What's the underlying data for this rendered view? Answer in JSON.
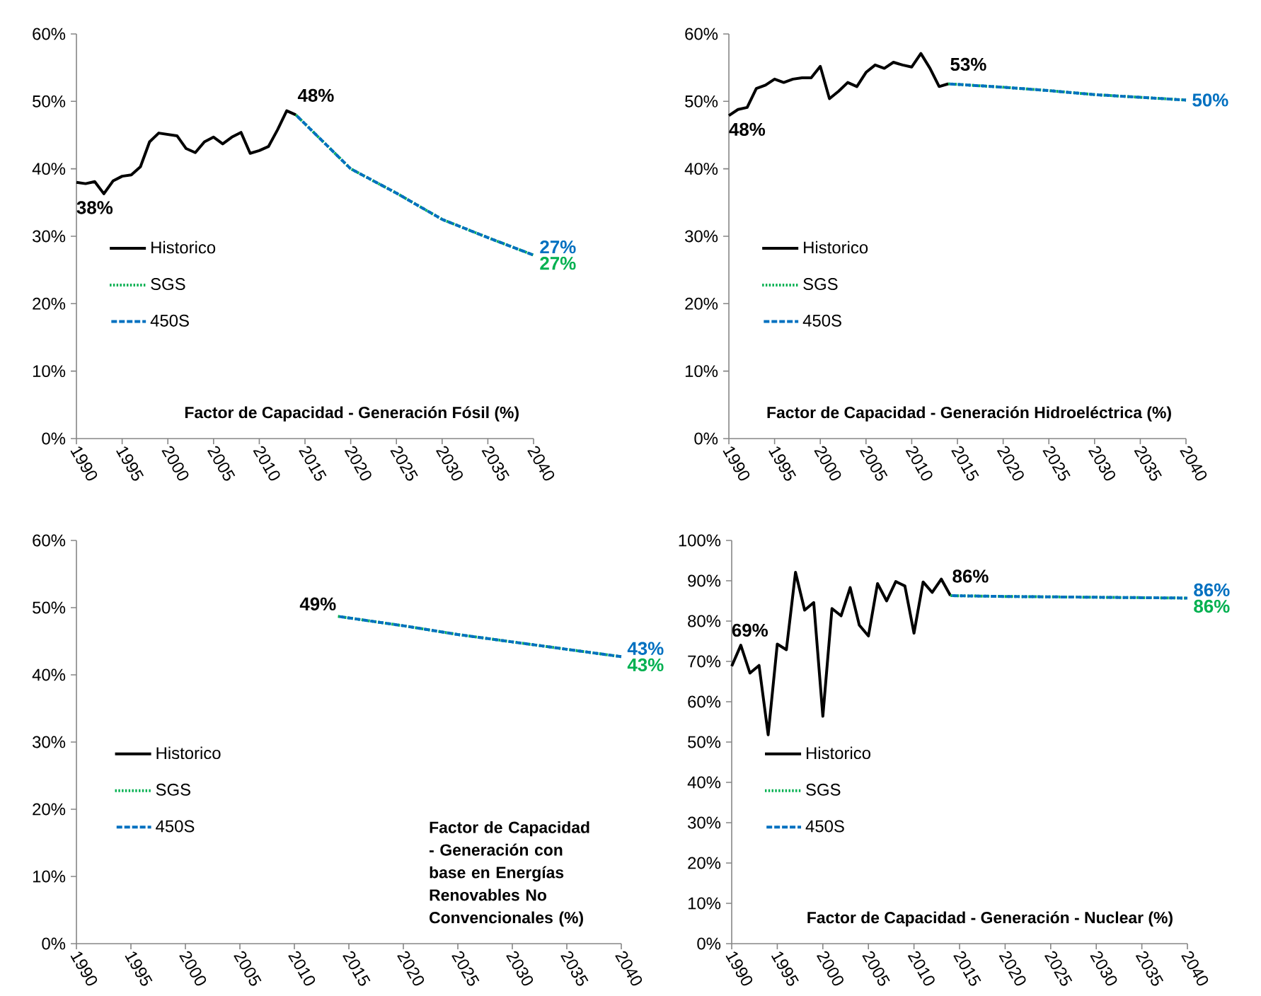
{
  "chart_data": [
    {
      "type": "line",
      "title": "Factor de Capacidad - Generación Fósil (%)",
      "xlim": [
        1990,
        2040
      ],
      "xticks": [
        1990,
        1995,
        2000,
        2005,
        2010,
        2015,
        2020,
        2025,
        2030,
        2035,
        2040
      ],
      "ylim": [
        0,
        60
      ],
      "yticks": [
        {
          "value": 0,
          "label": "0%"
        },
        {
          "value": 10,
          "label": "10%"
        },
        {
          "value": 20,
          "label": "20%"
        },
        {
          "value": 30,
          "label": "30%"
        },
        {
          "value": 40,
          "label": "40%"
        },
        {
          "value": 50,
          "label": "50%"
        },
        {
          "value": 60,
          "label": "60%"
        }
      ],
      "legend": "center left",
      "series": [
        {
          "name": "Historico",
          "color": "#000000",
          "line_style": "solid",
          "x": [
            1990,
            1991,
            1992,
            1993,
            1994,
            1995,
            1996,
            1997,
            1998,
            1999,
            2000,
            2001,
            2002,
            2003,
            2004,
            2005,
            2006,
            2007,
            2008,
            2009,
            2010,
            2011,
            2012,
            2013,
            2014
          ],
          "values": [
            38.0,
            37.8,
            38.1,
            36.3,
            38.2,
            38.9,
            39.1,
            40.3,
            44.0,
            45.3,
            45.1,
            44.9,
            43.0,
            42.4,
            44.0,
            44.7,
            43.7,
            44.7,
            45.4,
            42.3,
            42.7,
            43.3,
            45.8,
            48.6,
            48.0
          ],
          "value_labels": [
            "38%",
            null,
            null,
            null,
            null,
            null,
            null,
            null,
            null,
            null,
            null,
            null,
            null,
            null,
            null,
            null,
            null,
            null,
            null,
            null,
            null,
            null,
            null,
            null,
            "48%"
          ]
        },
        {
          "name": "SGS",
          "color": "#00b050",
          "line_style": "dotted",
          "x": [
            2014,
            2017,
            2020,
            2025,
            2030,
            2035,
            2040
          ],
          "values": [
            48.0,
            44.0,
            40.0,
            36.4,
            32.5,
            29.8,
            27.2
          ],
          "value_labels": [
            null,
            null,
            null,
            null,
            null,
            null,
            "27%"
          ]
        },
        {
          "name": "450S",
          "color": "#0070c0",
          "line_style": "dashed",
          "x": [
            2014,
            2017,
            2020,
            2025,
            2030,
            2035,
            2040
          ],
          "values": [
            48.0,
            44.0,
            40.0,
            36.4,
            32.5,
            29.8,
            27.2
          ],
          "value_labels": [
            null,
            null,
            null,
            null,
            null,
            null,
            "27%"
          ]
        }
      ]
    },
    {
      "type": "line",
      "title": "Factor de Capacidad - Generación Hidroeléctrica (%)",
      "xlim": [
        1990,
        2040
      ],
      "xticks": [
        1990,
        1995,
        2000,
        2005,
        2010,
        2015,
        2020,
        2025,
        2030,
        2035,
        2040
      ],
      "ylim": [
        0,
        60
      ],
      "yticks": [
        {
          "value": 0,
          "label": "0%"
        },
        {
          "value": 10,
          "label": "10%"
        },
        {
          "value": 20,
          "label": "20%"
        },
        {
          "value": 30,
          "label": "30%"
        },
        {
          "value": 40,
          "label": "40%"
        },
        {
          "value": 50,
          "label": "50%"
        },
        {
          "value": 60,
          "label": "60%"
        }
      ],
      "legend": "center left",
      "series": [
        {
          "name": "Historico",
          "color": "#000000",
          "line_style": "solid",
          "x": [
            1990,
            1991,
            1992,
            1993,
            1994,
            1995,
            1996,
            1997,
            1998,
            1999,
            2000,
            2001,
            2002,
            2003,
            2004,
            2005,
            2006,
            2007,
            2008,
            2009,
            2010,
            2011,
            2012,
            2013,
            2014
          ],
          "values": [
            47.9,
            48.8,
            49.1,
            51.9,
            52.4,
            53.3,
            52.8,
            53.3,
            53.5,
            53.5,
            55.2,
            50.4,
            51.5,
            52.8,
            52.2,
            54.3,
            55.4,
            54.9,
            55.8,
            55.4,
            55.1,
            57.1,
            54.9,
            52.2,
            52.6
          ],
          "value_labels": [
            "48%",
            null,
            null,
            null,
            null,
            null,
            null,
            null,
            null,
            null,
            null,
            null,
            null,
            null,
            null,
            null,
            null,
            null,
            null,
            null,
            null,
            null,
            null,
            null,
            "53%"
          ]
        },
        {
          "name": "SGS",
          "color": "#00b050",
          "line_style": "dotted",
          "x": [
            2014,
            2020,
            2025,
            2030,
            2035,
            2040
          ],
          "values": [
            52.6,
            52.1,
            51.6,
            51.0,
            50.6,
            50.2
          ],
          "value_labels": [
            null,
            null,
            null,
            null,
            null,
            null
          ]
        },
        {
          "name": "450S",
          "color": "#0070c0",
          "line_style": "dashed",
          "x": [
            2014,
            2020,
            2025,
            2030,
            2035,
            2040
          ],
          "values": [
            52.6,
            52.1,
            51.6,
            51.0,
            50.6,
            50.2
          ],
          "value_labels": [
            null,
            null,
            null,
            null,
            null,
            "50%"
          ]
        }
      ]
    },
    {
      "type": "line",
      "title": "Factor de Capacidad - Generación con base en Energías Renovables No Convencionales (%)",
      "annotations": [
        {
          "text": "49%",
          "x": 2014,
          "y": 48.7
        }
      ],
      "xlim": [
        1990,
        2040
      ],
      "xticks": [
        1990,
        1995,
        2000,
        2005,
        2010,
        2015,
        2020,
        2025,
        2030,
        2035,
        2040
      ],
      "ylim": [
        0,
        60
      ],
      "yticks": [
        {
          "value": 0,
          "label": "0%"
        },
        {
          "value": 10,
          "label": "10%"
        },
        {
          "value": 20,
          "label": "20%"
        },
        {
          "value": 30,
          "label": "30%"
        },
        {
          "value": 40,
          "label": "40%"
        },
        {
          "value": 50,
          "label": "50%"
        },
        {
          "value": 60,
          "label": "60%"
        }
      ],
      "legend": "center left",
      "series": [
        {
          "name": "Historico",
          "color": "#000000",
          "line_style": "solid"
        },
        {
          "name": "SGS",
          "color": "#00b050",
          "line_style": "dotted",
          "x": [
            2014,
            2020,
            2025,
            2030,
            2035,
            2040
          ],
          "values": [
            48.7,
            47.3,
            46.0,
            44.9,
            43.8,
            42.7
          ],
          "value_labels": [
            null,
            null,
            null,
            null,
            null,
            "43%"
          ]
        },
        {
          "name": "450S",
          "color": "#0070c0",
          "line_style": "dashed",
          "x": [
            2014,
            2020,
            2025,
            2030,
            2035,
            2040
          ],
          "values": [
            48.7,
            47.3,
            46.0,
            44.9,
            43.8,
            42.7
          ],
          "value_labels": [
            null,
            null,
            null,
            null,
            null,
            "43%"
          ]
        }
      ]
    },
    {
      "type": "line",
      "title": "Factor de Capacidad - Generación - Nuclear (%)",
      "xlim": [
        1990,
        2040
      ],
      "xticks": [
        1990,
        1995,
        2000,
        2005,
        2010,
        2015,
        2020,
        2025,
        2030,
        2035,
        2040
      ],
      "ylim": [
        0,
        100
      ],
      "yticks": [
        {
          "value": 0,
          "label": "0%"
        },
        {
          "value": 10,
          "label": "10%"
        },
        {
          "value": 20,
          "label": "20%"
        },
        {
          "value": 30,
          "label": "30%"
        },
        {
          "value": 40,
          "label": "40%"
        },
        {
          "value": 50,
          "label": "50%"
        },
        {
          "value": 60,
          "label": "60%"
        },
        {
          "value": 70,
          "label": "70%"
        },
        {
          "value": 80,
          "label": "80%"
        },
        {
          "value": 90,
          "label": "90%"
        },
        {
          "value": 100,
          "label": "100%"
        }
      ],
      "legend": "center left",
      "series": [
        {
          "name": "Historico",
          "color": "#000000",
          "line_style": "solid",
          "x": [
            1990,
            1991,
            1992,
            1993,
            1994,
            1995,
            1996,
            1997,
            1998,
            1999,
            2000,
            2001,
            2002,
            2003,
            2004,
            2005,
            2006,
            2007,
            2008,
            2009,
            2010,
            2011,
            2012,
            2013,
            2014
          ],
          "values": [
            68.8,
            74.0,
            67.1,
            69.0,
            51.8,
            74.3,
            72.9,
            92.1,
            82.7,
            84.6,
            56.4,
            83.1,
            81.3,
            88.3,
            79.0,
            76.3,
            89.3,
            85.0,
            89.8,
            88.7,
            77.0,
            89.7,
            87.1,
            90.4,
            86.3
          ],
          "value_labels": [
            "69%",
            null,
            null,
            null,
            null,
            null,
            null,
            null,
            null,
            null,
            null,
            null,
            null,
            null,
            null,
            null,
            null,
            null,
            null,
            null,
            null,
            null,
            null,
            null,
            "86%"
          ]
        },
        {
          "name": "SGS",
          "color": "#00b050",
          "line_style": "dotted",
          "x": [
            2014,
            2020,
            2030,
            2040
          ],
          "values": [
            86.3,
            86.1,
            85.9,
            85.7
          ],
          "value_labels": [
            null,
            null,
            null,
            "86%"
          ]
        },
        {
          "name": "450S",
          "color": "#0070c0",
          "line_style": "dashed",
          "x": [
            2014,
            2020,
            2030,
            2040
          ],
          "values": [
            86.3,
            86.1,
            85.9,
            85.7
          ],
          "value_labels": [
            null,
            null,
            null,
            "86%"
          ]
        }
      ]
    }
  ]
}
